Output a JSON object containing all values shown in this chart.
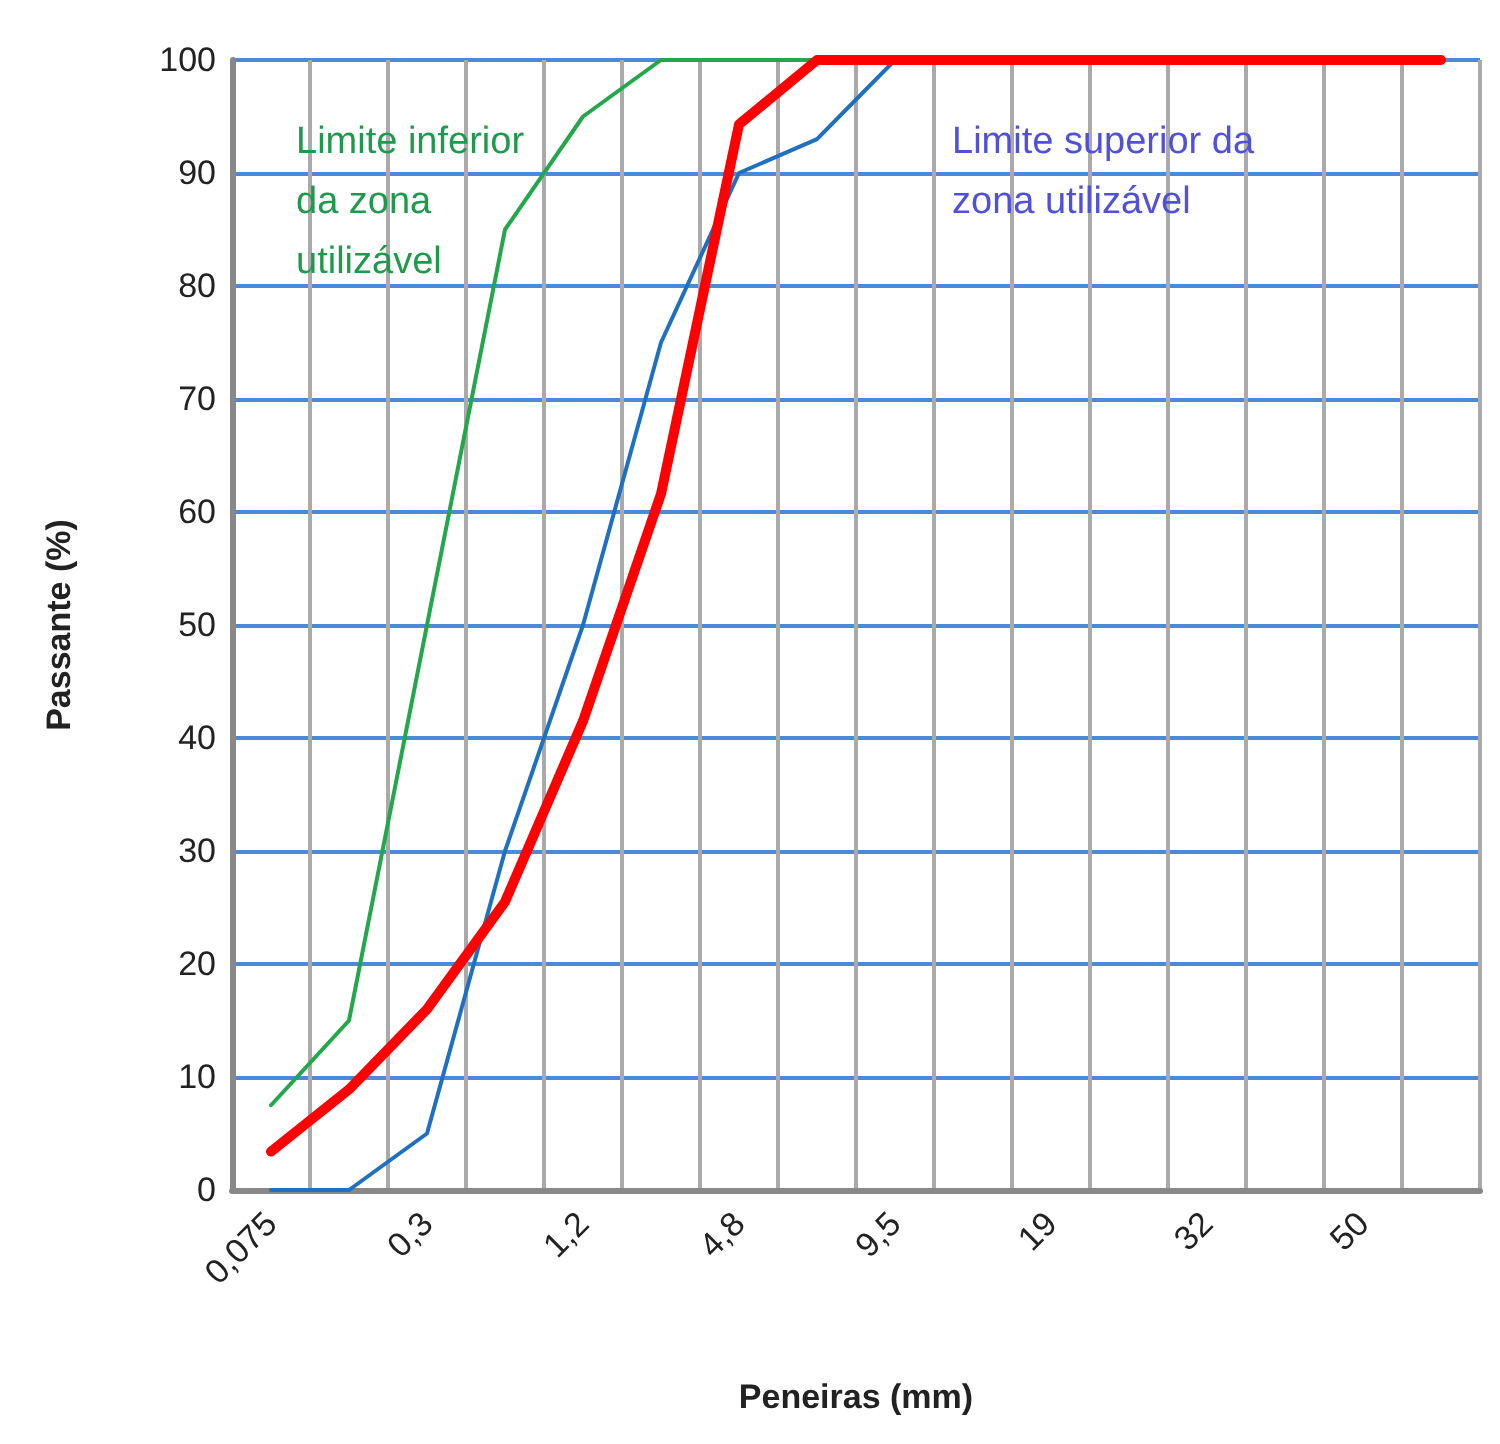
{
  "chart_data": {
    "type": "line",
    "xlabel": "Peneiras (mm)",
    "ylabel": "Passante (%)",
    "categories": [
      "0,075",
      null,
      "0,3",
      null,
      "1,2",
      null,
      "4,8",
      null,
      "9,5",
      null,
      "19",
      null,
      "32",
      null,
      "50",
      null
    ],
    "series": [
      {
        "color": "#22a84a",
        "values": [
          7.5,
          15,
          50,
          85,
          95,
          100,
          100,
          100,
          null,
          null,
          null,
          null,
          null,
          null,
          null,
          null
        ]
      },
      {
        "color": "#2070c0",
        "values": [
          0,
          0,
          5,
          30,
          50,
          75,
          90,
          93,
          100,
          null,
          null,
          null,
          null,
          null,
          null,
          null
        ]
      },
      {
        "color": "#ff0000",
        "values": [
          3.4,
          8.9,
          16,
          25.5,
          41.5,
          61.6,
          94.3,
          100,
          100,
          100,
          100,
          100,
          100,
          100,
          100,
          100
        ]
      }
    ],
    "ylim": [
      0,
      100
    ],
    "yticks": [
      0,
      10,
      20,
      30,
      40,
      50,
      60,
      70,
      80,
      90,
      100
    ],
    "grid": true,
    "marker": "none",
    "annotations": [
      "Limite inferior\nda zona\nutilizável",
      "Limite superior da\nzona utilizável"
    ]
  }
}
